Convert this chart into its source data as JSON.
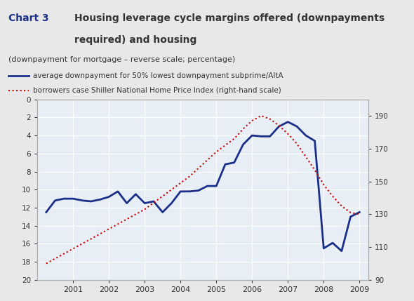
{
  "title_box": "Chart 3",
  "title_main": "Housing leverage cycle margins offered (downpayments\nrequired) and housing",
  "subtitle": "(downpayment for mortgage – reverse scale; percentage)",
  "legend_line1": "average downpayment for 50% lowest downpayment subprime/AltA",
  "legend_line2": "borrowers case Shiller National Home Price Index (right-hand scale)",
  "bg_color": "#e8e8e8",
  "plot_bg_color": "#e8eef5",
  "title_bg_color": "#c8c8c8",
  "blue_color": "#1a2f8a",
  "red_color": "#cc0000",
  "downpayment_x": [
    2000.25,
    2000.5,
    2000.75,
    2001.0,
    2001.25,
    2001.5,
    2001.75,
    2002.0,
    2002.25,
    2002.5,
    2002.75,
    2003.0,
    2003.25,
    2003.5,
    2003.75,
    2004.0,
    2004.25,
    2004.5,
    2004.75,
    2005.0,
    2005.25,
    2005.5,
    2005.75,
    2006.0,
    2006.25,
    2006.5,
    2006.75,
    2007.0,
    2007.25,
    2007.5,
    2007.75,
    2008.0,
    2008.25,
    2008.5,
    2008.75,
    2009.0
  ],
  "downpayment_y": [
    12.5,
    11.2,
    11.0,
    11.0,
    11.2,
    11.3,
    11.1,
    10.8,
    10.2,
    11.5,
    10.5,
    11.5,
    11.3,
    12.5,
    11.5,
    10.2,
    10.2,
    10.1,
    9.6,
    9.6,
    7.2,
    7.0,
    5.0,
    4.0,
    4.1,
    4.1,
    3.0,
    2.5,
    3.0,
    4.0,
    4.6,
    16.5,
    15.9,
    16.8,
    13.0,
    12.5
  ],
  "hpi_x": [
    2000.25,
    2000.5,
    2000.75,
    2001.0,
    2001.25,
    2001.5,
    2001.75,
    2002.0,
    2002.25,
    2002.5,
    2002.75,
    2003.0,
    2003.25,
    2003.5,
    2003.75,
    2004.0,
    2004.25,
    2004.5,
    2004.75,
    2005.0,
    2005.25,
    2005.5,
    2005.75,
    2006.0,
    2006.25,
    2006.5,
    2006.75,
    2007.0,
    2007.25,
    2007.5,
    2007.75,
    2008.0,
    2008.25,
    2008.5,
    2008.75,
    2009.0
  ],
  "hpi_y": [
    100,
    103,
    106,
    109,
    112,
    115,
    118,
    121,
    124,
    127,
    130,
    133,
    137,
    141,
    145,
    149,
    153,
    158,
    163,
    168,
    172,
    176,
    182,
    187,
    190,
    188,
    184,
    179,
    173,
    165,
    157,
    148,
    141,
    135,
    131,
    130
  ],
  "xlim": [
    2000.0,
    2009.25
  ],
  "ylim_left": [
    20,
    0
  ],
  "ylim_right": [
    90,
    200
  ],
  "xticks": [
    2001,
    2002,
    2003,
    2004,
    2005,
    2006,
    2007,
    2008,
    2009
  ],
  "yticks_left": [
    0,
    2,
    4,
    6,
    8,
    10,
    12,
    14,
    16,
    18,
    20
  ],
  "yticks_right": [
    90,
    110,
    130,
    150,
    170,
    190
  ]
}
